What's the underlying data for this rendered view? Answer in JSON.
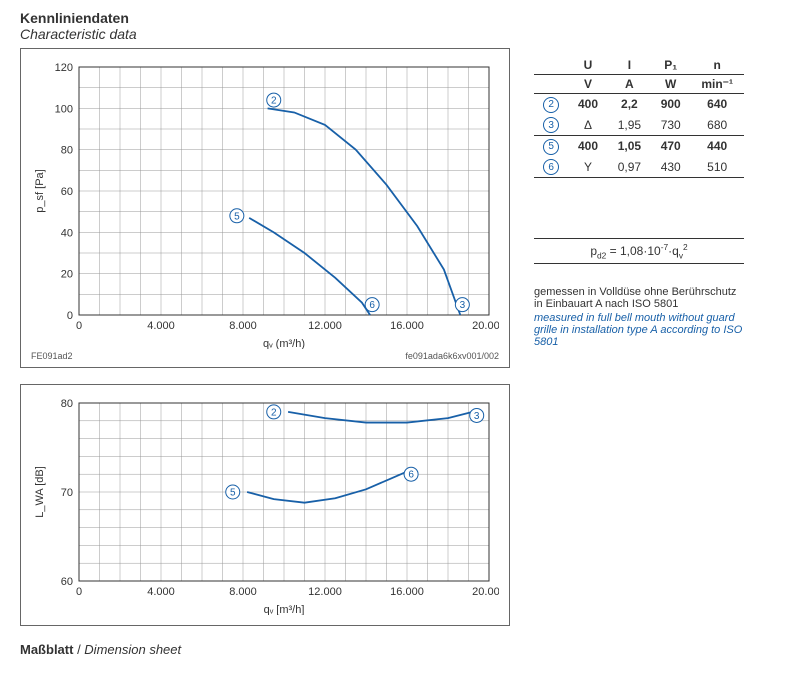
{
  "headings": {
    "main_de": "Kennliniendaten",
    "main_en": "Characteristic data",
    "bottom_de": "Maßblatt",
    "bottom_sep": " / ",
    "bottom_en": "Dimension sheet"
  },
  "colors": {
    "curve": "#1860A8",
    "grid": "#999999",
    "axis": "#333333",
    "bg": "#ffffff",
    "text": "#333333"
  },
  "chart1": {
    "type": "line",
    "plot_id": "FE091ad2",
    "file_id": "fe091ada6k6xv001/002",
    "xlim": [
      0,
      20000
    ],
    "ylim": [
      0,
      120
    ],
    "xticks": [
      0,
      4000,
      8000,
      12000,
      16000,
      20000
    ],
    "xtick_labels": [
      "0",
      "4.000",
      "8.000",
      "12.000",
      "16.000",
      "20.000"
    ],
    "yticks": [
      0,
      20,
      40,
      60,
      80,
      100,
      120
    ],
    "xlabel": "qᵥ (m³/h)",
    "ylabel": "p_sf [Pa]",
    "minor_x_step": 1000,
    "minor_y_step": 10,
    "series": [
      {
        "id": "2",
        "label_xy": [
          9500,
          104
        ],
        "points": [
          [
            9200,
            100
          ],
          [
            10500,
            98
          ],
          [
            12000,
            92
          ],
          [
            13500,
            80
          ],
          [
            15000,
            63
          ],
          [
            16500,
            43
          ],
          [
            17800,
            22
          ],
          [
            18600,
            0
          ]
        ]
      },
      {
        "id": "5",
        "label_xy": [
          7700,
          48
        ],
        "points": [
          [
            8300,
            47
          ],
          [
            9500,
            40
          ],
          [
            11000,
            30
          ],
          [
            12500,
            18
          ],
          [
            13800,
            6
          ],
          [
            14200,
            0
          ]
        ]
      }
    ],
    "markers": [
      {
        "id": "3",
        "xy": [
          18700,
          5
        ]
      },
      {
        "id": "6",
        "xy": [
          14300,
          5
        ]
      }
    ]
  },
  "chart2": {
    "type": "line",
    "xlim": [
      0,
      20000
    ],
    "ylim": [
      60,
      80
    ],
    "xticks": [
      0,
      4000,
      8000,
      12000,
      16000,
      20000
    ],
    "xtick_labels": [
      "0",
      "4.000",
      "8.000",
      "12.000",
      "16.000",
      "20.000"
    ],
    "yticks": [
      60,
      70,
      80
    ],
    "xlabel": "qᵥ [m³/h]",
    "ylabel": "L_WA [dB]",
    "minor_x_step": 1000,
    "minor_y_step": 2,
    "series": [
      {
        "id": "2",
        "label_xy": [
          9500,
          79
        ],
        "points": [
          [
            10200,
            79
          ],
          [
            12000,
            78.3
          ],
          [
            14000,
            77.8
          ],
          [
            16000,
            77.8
          ],
          [
            18000,
            78.3
          ],
          [
            19200,
            79
          ]
        ]
      },
      {
        "id": "5",
        "label_xy": [
          7500,
          70
        ],
        "points": [
          [
            8200,
            70
          ],
          [
            9500,
            69.2
          ],
          [
            11000,
            68.8
          ],
          [
            12500,
            69.3
          ],
          [
            14000,
            70.3
          ],
          [
            15200,
            71.5
          ],
          [
            16000,
            72.3
          ]
        ]
      }
    ],
    "markers": [
      {
        "id": "3",
        "xy": [
          19400,
          78.6
        ]
      },
      {
        "id": "6",
        "xy": [
          16200,
          72
        ]
      }
    ]
  },
  "table": {
    "headers1": [
      "",
      "U",
      "I",
      "P₁",
      "n"
    ],
    "headers2": [
      "",
      "V",
      "A",
      "W",
      "min⁻¹"
    ],
    "rows": [
      {
        "id": "②",
        "cells": [
          "400",
          "2,2",
          "900",
          "640"
        ],
        "bold": true,
        "sep": false
      },
      {
        "id": "③",
        "cells": [
          "Δ",
          "1,95",
          "730",
          "680"
        ],
        "bold": false,
        "sep": true
      },
      {
        "id": "⑤",
        "cells": [
          "400",
          "1,05",
          "470",
          "440"
        ],
        "bold": true,
        "sep": false
      },
      {
        "id": "⑥",
        "cells": [
          "Y",
          "0,97",
          "430",
          "510"
        ],
        "bold": false,
        "sep": true
      }
    ]
  },
  "formula": "p_d2 = 1,08·10⁻⁷·qᵥ²",
  "note": {
    "de": "gemessen in Volldüse ohne Berührschutz in Einbauart A nach ISO 5801",
    "en": "measured in full bell mouth without guard grille in installation type A according to ISO 5801"
  }
}
